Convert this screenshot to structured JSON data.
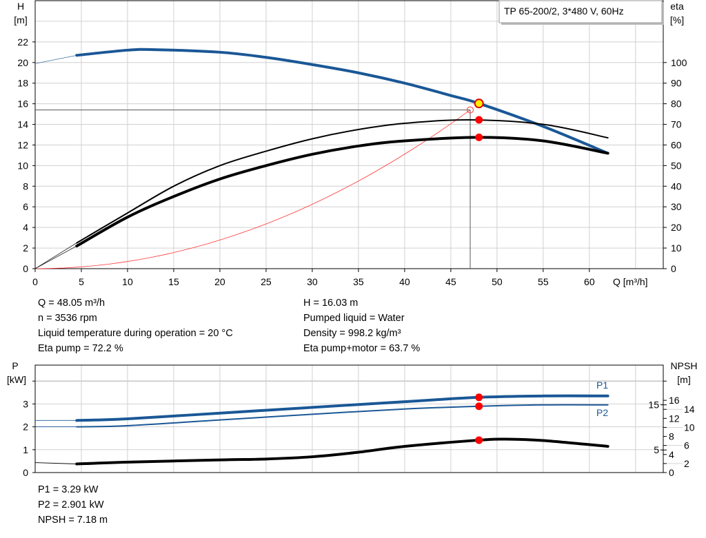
{
  "chart_data": [
    {
      "type": "line",
      "title": "TP 65-200/2, 3*480 V, 60Hz",
      "xlabel": "Q [m³/h]",
      "ylabel_left": [
        "H",
        "[m]"
      ],
      "ylabel_right": [
        "eta",
        "[%]"
      ],
      "xlim": [
        0,
        68
      ],
      "ylim_left": [
        0,
        26
      ],
      "ylim_right": [
        0,
        130
      ],
      "xticks": [
        0,
        5,
        10,
        15,
        20,
        25,
        30,
        35,
        40,
        45,
        50,
        55,
        60
      ],
      "yticks_left": [
        0,
        2,
        4,
        6,
        8,
        10,
        12,
        14,
        16,
        18,
        20,
        22
      ],
      "yticks_right": [
        0,
        10,
        20,
        30,
        40,
        50,
        60,
        70,
        80,
        90,
        100
      ],
      "grid": true,
      "colors": {
        "head": "#1a5796",
        "eta": "#000000",
        "system": "#ff3333",
        "point": "#ff0000",
        "duty": "#ffee00"
      },
      "series": [
        {
          "key": "head",
          "axis": "left",
          "extrapolated": [
            [
              0,
              19.9
            ],
            [
              4.5,
              20.7
            ]
          ],
          "values": [
            [
              4.5,
              20.7
            ],
            [
              10,
              21.2
            ],
            [
              13,
              21.25
            ],
            [
              20,
              21.0
            ],
            [
              25,
              20.5
            ],
            [
              30,
              19.8
            ],
            [
              35,
              19.0
            ],
            [
              40,
              18.0
            ],
            [
              45,
              16.8
            ],
            [
              48.05,
              16.03
            ],
            [
              55,
              13.8
            ],
            [
              62,
              11.2
            ]
          ]
        },
        {
          "key": "eta_pump",
          "axis": "right",
          "extrapolated": [
            [
              0,
              0
            ],
            [
              4.5,
              12.5
            ]
          ],
          "values": [
            [
              4.5,
              12.5
            ],
            [
              10,
              27
            ],
            [
              15,
              40
            ],
            [
              20,
              50
            ],
            [
              25,
              57
            ],
            [
              30,
              63
            ],
            [
              35,
              67.5
            ],
            [
              40,
              70.5
            ],
            [
              47,
              72.2
            ],
            [
              55,
              70
            ],
            [
              62,
              63.5
            ]
          ]
        },
        {
          "key": "eta_pump_motor",
          "axis": "right",
          "extrapolated": [
            [
              0,
              0
            ],
            [
              4.5,
              11
            ]
          ],
          "values": [
            [
              4.5,
              11
            ],
            [
              10,
              25
            ],
            [
              15,
              35
            ],
            [
              20,
              43.5
            ],
            [
              25,
              50
            ],
            [
              30,
              55.5
            ],
            [
              35,
              59.5
            ],
            [
              40,
              62
            ],
            [
              48.05,
              63.7
            ],
            [
              55,
              62
            ],
            [
              62,
              56
            ]
          ]
        },
        {
          "key": "system",
          "axis": "left",
          "type": "quadratic",
          "through": [
            47.1,
            15.4
          ],
          "xrange": [
            0,
            47.1
          ]
        }
      ],
      "duty_point": {
        "Q": 48.05,
        "H": 16.03,
        "eta_pump": 72.2,
        "eta_pump_motor": 63.7
      },
      "required_point": {
        "Q": 47.1,
        "H": 15.4
      }
    },
    {
      "type": "line",
      "ylabel_left": [
        "P",
        "[kW]"
      ],
      "ylabel_right": [
        "NPSH",
        "[m]"
      ],
      "xlim": [
        0,
        68
      ],
      "ylim_left": [
        0,
        4.7
      ],
      "ylim_right": [
        0,
        23.8
      ],
      "yticks_left": [
        0,
        1,
        2,
        3
      ],
      "yticks_right": [
        0,
        2,
        4,
        5,
        6,
        8,
        10,
        12,
        14,
        15,
        16
      ],
      "grid": true,
      "series": [
        {
          "key": "P1",
          "name": "P1",
          "axis": "left",
          "extrapolated": [
            [
              0,
              2.28
            ],
            [
              4.5,
              2.28
            ]
          ],
          "values": [
            [
              4.5,
              2.28
            ],
            [
              10,
              2.35
            ],
            [
              20,
              2.6
            ],
            [
              30,
              2.85
            ],
            [
              40,
              3.1
            ],
            [
              48.05,
              3.29
            ],
            [
              55,
              3.35
            ],
            [
              62,
              3.35
            ]
          ]
        },
        {
          "key": "P2",
          "name": "P2",
          "axis": "left",
          "extrapolated": [
            [
              0,
              2.0
            ],
            [
              4.5,
              2.0
            ]
          ],
          "values": [
            [
              4.5,
              2.0
            ],
            [
              10,
              2.05
            ],
            [
              20,
              2.3
            ],
            [
              30,
              2.55
            ],
            [
              40,
              2.78
            ],
            [
              48.05,
              2.901
            ],
            [
              55,
              2.96
            ],
            [
              62,
              2.96
            ]
          ]
        },
        {
          "key": "NPSH",
          "axis": "right",
          "extrapolated": [
            [
              0,
              2.2
            ],
            [
              4.5,
              1.9
            ]
          ],
          "values": [
            [
              4.5,
              1.9
            ],
            [
              10,
              2.3
            ],
            [
              20,
              2.8
            ],
            [
              25,
              3.0
            ],
            [
              30,
              3.5
            ],
            [
              35,
              4.5
            ],
            [
              40,
              5.8
            ],
            [
              48.05,
              7.18
            ],
            [
              51,
              7.4
            ],
            [
              55,
              7.1
            ],
            [
              62,
              5.8
            ]
          ]
        }
      ],
      "duty_point": {
        "Q": 48.05,
        "P1": 3.29,
        "P2": 2.901,
        "NPSH": 7.18
      }
    }
  ],
  "info": {
    "left": [
      "Q = 48.05 m³/h",
      "n = 3536 rpm",
      "Liquid temperature during operation = 20 °C",
      "Eta pump = 72.2 %"
    ],
    "right": [
      "H = 16.03 m",
      "Pumped liquid = Water",
      "Density = 998.2 kg/m³",
      "Eta pump+motor = 63.7 %"
    ],
    "bottom": [
      "P1 = 3.29 kW",
      "P2 = 2.901 kW",
      "NPSH = 7.18 m"
    ]
  }
}
